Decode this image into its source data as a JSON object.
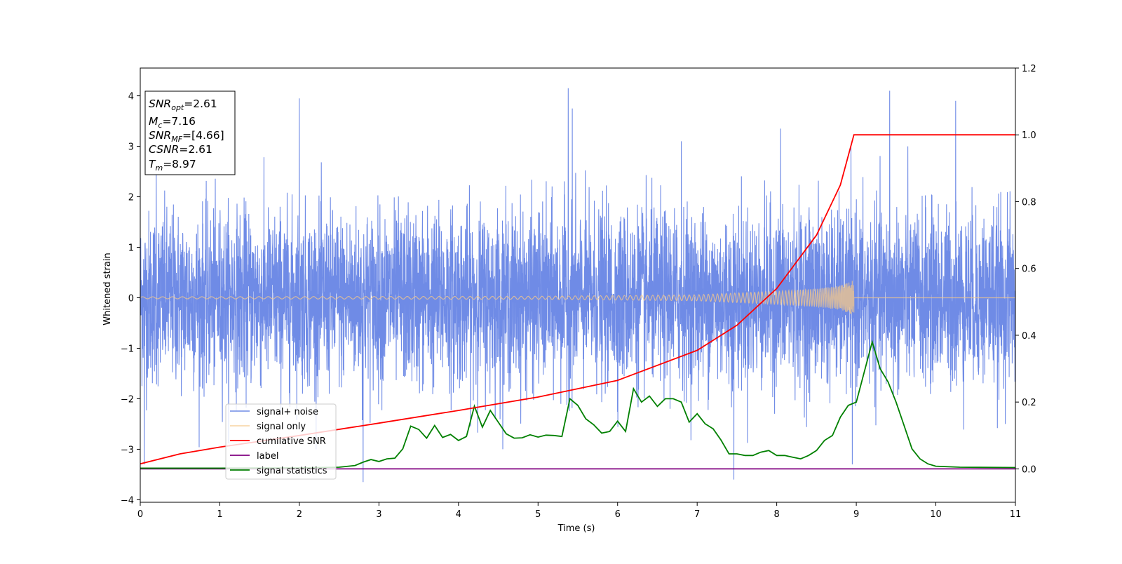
{
  "chart_data": {
    "type": "line",
    "title": "",
    "xlabel": "Time (s)",
    "ylabel": "Whitened strain",
    "xlim": [
      0,
      11
    ],
    "ylim_left": [
      -4.05,
      4.55
    ],
    "ylim_right": [
      -0.1,
      1.2
    ],
    "x_ticks": [
      "0",
      "1",
      "2",
      "3",
      "4",
      "5",
      "6",
      "7",
      "8",
      "9",
      "10",
      "11"
    ],
    "y_ticks_left": [
      "−4",
      "−3",
      "−2",
      "−1",
      "0",
      "1",
      "2",
      "3",
      "4"
    ],
    "y_ticks_right": [
      "0.0",
      "0.2",
      "0.4",
      "0.6",
      "0.8",
      "1.0",
      "1.2"
    ],
    "grid": false,
    "legend_position": "lower-left",
    "info_box": {
      "lines": [
        {
          "base": "SNR",
          "sub": "opt",
          "value": "=2.61"
        },
        {
          "base": "M",
          "sub": "c",
          "value": "=7.16"
        },
        {
          "base": "SNR",
          "sub": "MF",
          "value": "=[4.66]"
        },
        {
          "base": "CSNR",
          "sub": "",
          "value": "=2.61"
        },
        {
          "base": "T",
          "sub": "m",
          "value": "=8.97"
        }
      ]
    },
    "series": [
      {
        "name": "signal+ noise",
        "axis": "left",
        "color": "#6f8be6",
        "kind": "noise",
        "x_range": [
          0,
          11
        ],
        "sigma": 0.85,
        "peaks": [
          [
            0.05,
            -3.3
          ],
          [
            2.0,
            3.95
          ],
          [
            2.8,
            -3.65
          ],
          [
            5.38,
            4.15
          ],
          [
            5.43,
            3.75
          ],
          [
            7.46,
            -3.6
          ],
          [
            8.05,
            3.35
          ],
          [
            9.42,
            4.1
          ],
          [
            10.25,
            3.9
          ],
          [
            8.95,
            -3.3
          ],
          [
            0.2,
            2.6
          ],
          [
            6.8,
            3.1
          ]
        ]
      },
      {
        "name": "signal only",
        "axis": "left",
        "color": "#f5c88a",
        "kind": "chirp",
        "x_range": [
          0,
          8.97
        ],
        "points": [
          [
            0,
            0.02
          ],
          [
            5,
            0.03
          ],
          [
            7,
            0.06
          ],
          [
            8,
            0.13
          ],
          [
            8.5,
            0.18
          ],
          [
            8.8,
            0.24
          ],
          [
            8.9,
            0.3
          ],
          [
            8.97,
            0.35
          ]
        ]
      },
      {
        "name": "cumilative SNR",
        "axis": "right",
        "color": "#ff0000",
        "kind": "line",
        "points": [
          [
            0,
            0.015
          ],
          [
            0.5,
            0.045
          ],
          [
            1,
            0.065
          ],
          [
            2,
            0.1
          ],
          [
            3,
            0.137
          ],
          [
            4,
            0.175
          ],
          [
            5,
            0.215
          ],
          [
            6,
            0.265
          ],
          [
            7,
            0.355
          ],
          [
            7.5,
            0.43
          ],
          [
            8,
            0.54
          ],
          [
            8.5,
            0.7
          ],
          [
            8.8,
            0.85
          ],
          [
            8.97,
            1.0
          ],
          [
            11,
            1.0
          ]
        ]
      },
      {
        "name": "label",
        "axis": "right",
        "color": "#800080",
        "kind": "line",
        "points": [
          [
            0,
            0.0
          ],
          [
            11,
            0.0
          ]
        ]
      },
      {
        "name": "signal statistics",
        "axis": "right",
        "color": "#008000",
        "kind": "line",
        "points": [
          [
            0,
            0.002
          ],
          [
            1,
            0.002
          ],
          [
            2,
            0.003
          ],
          [
            2.5,
            0.005
          ],
          [
            2.7,
            0.01
          ],
          [
            2.8,
            0.02
          ],
          [
            2.9,
            0.028
          ],
          [
            3.0,
            0.022
          ],
          [
            3.1,
            0.03
          ],
          [
            3.2,
            0.032
          ],
          [
            3.3,
            0.06
          ],
          [
            3.4,
            0.128
          ],
          [
            3.5,
            0.118
          ],
          [
            3.6,
            0.092
          ],
          [
            3.7,
            0.13
          ],
          [
            3.8,
            0.094
          ],
          [
            3.9,
            0.103
          ],
          [
            4.0,
            0.085
          ],
          [
            4.1,
            0.097
          ],
          [
            4.2,
            0.188
          ],
          [
            4.3,
            0.125
          ],
          [
            4.4,
            0.175
          ],
          [
            4.5,
            0.14
          ],
          [
            4.6,
            0.105
          ],
          [
            4.7,
            0.092
          ],
          [
            4.8,
            0.093
          ],
          [
            4.9,
            0.102
          ],
          [
            5.0,
            0.095
          ],
          [
            5.1,
            0.101
          ],
          [
            5.2,
            0.1
          ],
          [
            5.3,
            0.097
          ],
          [
            5.4,
            0.21
          ],
          [
            5.5,
            0.19
          ],
          [
            5.6,
            0.15
          ],
          [
            5.7,
            0.132
          ],
          [
            5.8,
            0.107
          ],
          [
            5.9,
            0.112
          ],
          [
            6.0,
            0.143
          ],
          [
            6.1,
            0.112
          ],
          [
            6.2,
            0.24
          ],
          [
            6.3,
            0.2
          ],
          [
            6.4,
            0.218
          ],
          [
            6.5,
            0.187
          ],
          [
            6.6,
            0.21
          ],
          [
            6.7,
            0.21
          ],
          [
            6.8,
            0.2
          ],
          [
            6.9,
            0.14
          ],
          [
            7.0,
            0.165
          ],
          [
            7.1,
            0.135
          ],
          [
            7.2,
            0.12
          ],
          [
            7.3,
            0.086
          ],
          [
            7.4,
            0.045
          ],
          [
            7.5,
            0.045
          ],
          [
            7.6,
            0.04
          ],
          [
            7.7,
            0.04
          ],
          [
            7.8,
            0.05
          ],
          [
            7.9,
            0.055
          ],
          [
            8.0,
            0.04
          ],
          [
            8.1,
            0.04
          ],
          [
            8.2,
            0.035
          ],
          [
            8.3,
            0.03
          ],
          [
            8.4,
            0.04
          ],
          [
            8.5,
            0.055
          ],
          [
            8.6,
            0.085
          ],
          [
            8.7,
            0.1
          ],
          [
            8.8,
            0.155
          ],
          [
            8.9,
            0.19
          ],
          [
            9.0,
            0.2
          ],
          [
            9.2,
            0.38
          ],
          [
            9.3,
            0.3
          ],
          [
            9.4,
            0.26
          ],
          [
            9.5,
            0.2
          ],
          [
            9.6,
            0.13
          ],
          [
            9.7,
            0.06
          ],
          [
            9.8,
            0.03
          ],
          [
            9.9,
            0.015
          ],
          [
            10.0,
            0.008
          ],
          [
            10.3,
            0.005
          ],
          [
            11.0,
            0.004
          ]
        ]
      }
    ]
  }
}
